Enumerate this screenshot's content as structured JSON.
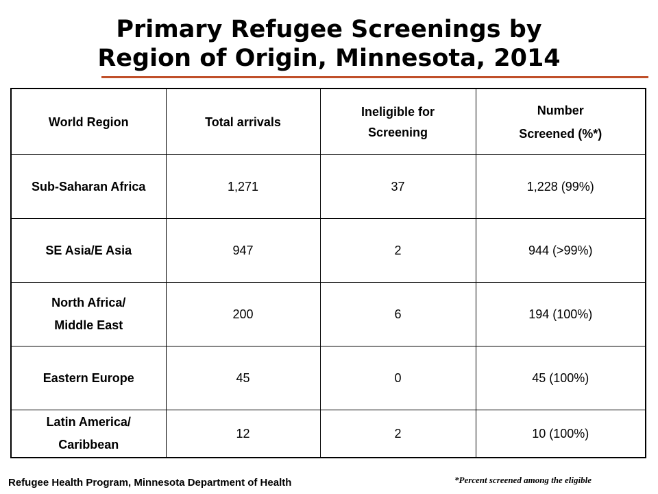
{
  "title": {
    "line1": "Primary Refugee Screenings by",
    "line2": "Region of Origin, Minnesota, 2014"
  },
  "table": {
    "headers": [
      [
        "World Region"
      ],
      [
        "Total arrivals"
      ],
      [
        "Ineligible  for",
        "Screening"
      ],
      [
        "Number",
        "Screened (%*)"
      ]
    ],
    "rows": [
      {
        "region": [
          "Sub-Saharan Africa"
        ],
        "total": "1,271",
        "ineligible": "37",
        "screened": "1,228 (99%)"
      },
      {
        "region": [
          "SE Asia/E Asia"
        ],
        "total": "947",
        "ineligible": "2",
        "screened": "944 (>99%)"
      },
      {
        "region": [
          "North Africa/",
          "Middle East"
        ],
        "total": "200",
        "ineligible": "6",
        "screened": "194 (100%)"
      },
      {
        "region": [
          "Eastern Europe"
        ],
        "total": "45",
        "ineligible": "0",
        "screened": "45 (100%)"
      },
      {
        "region": [
          "Latin America/",
          "Caribbean"
        ],
        "total": "12",
        "ineligible": "2",
        "screened": "10 (100%)"
      }
    ]
  },
  "footer": {
    "source": "Refugee Health Program, Minnesota Department of Health",
    "note": "*Percent screened among the eligible"
  },
  "colors": {
    "rule": "#c0502a"
  }
}
